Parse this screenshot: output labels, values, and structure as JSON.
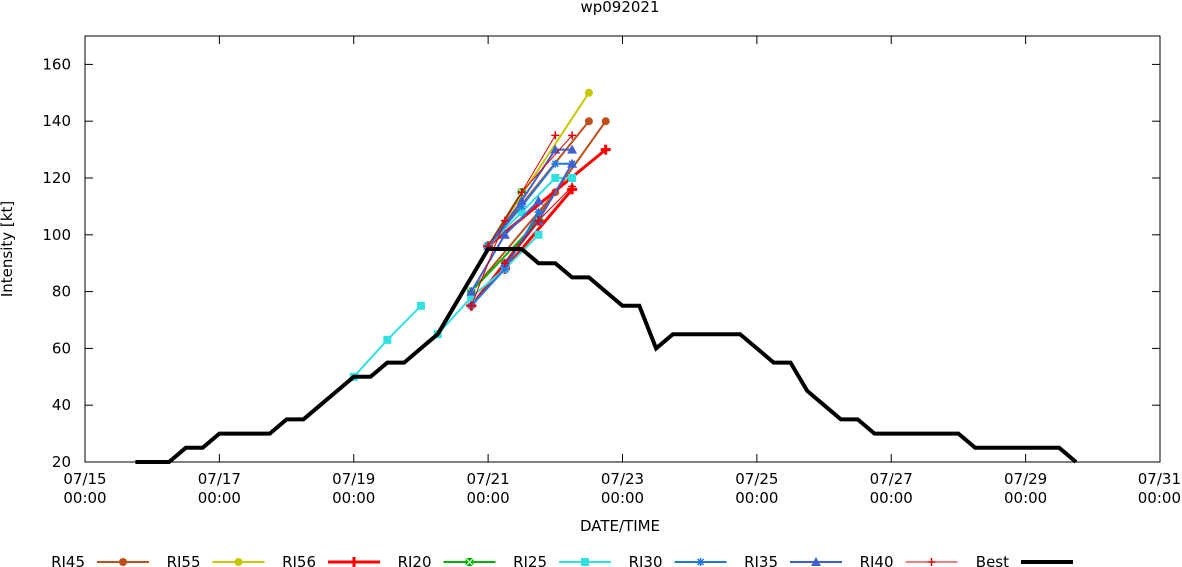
{
  "chart_data": {
    "type": "line",
    "title": "wp092021",
    "xlabel": "DATE/TIME",
    "ylabel": "Intensity [kt]",
    "x_unit": "days since 07/15 00:00",
    "xlim": [
      0,
      16
    ],
    "ylim": [
      20,
      170
    ],
    "grid": false,
    "legend_placement": "bottom",
    "y_ticks": [
      20,
      40,
      60,
      80,
      100,
      120,
      140,
      160
    ],
    "x_ticks": [
      {
        "x": 0,
        "date": "07/15",
        "time": "00:00"
      },
      {
        "x": 2,
        "date": "07/17",
        "time": "00:00"
      },
      {
        "x": 4,
        "date": "07/19",
        "time": "00:00"
      },
      {
        "x": 6,
        "date": "07/21",
        "time": "00:00"
      },
      {
        "x": 8,
        "date": "07/23",
        "time": "00:00"
      },
      {
        "x": 10,
        "date": "07/25",
        "time": "00:00"
      },
      {
        "x": 12,
        "date": "07/27",
        "time": "00:00"
      },
      {
        "x": 14,
        "date": "07/29",
        "time": "00:00"
      },
      {
        "x": 16,
        "date": "07/31",
        "time": "00:00"
      }
    ],
    "series": [
      {
        "name": "RI45",
        "color": "#c0501a",
        "marker": "circle",
        "width": 2,
        "lines": [
          [
            [
              6.0,
              96
            ],
            [
              7.5,
              140
            ]
          ],
          [
            [
              6.25,
              90
            ],
            [
              7.75,
              140
            ]
          ],
          [
            [
              5.75,
              80
            ],
            [
              7.0,
              115
            ]
          ]
        ]
      },
      {
        "name": "RI55",
        "color": "#c8c800",
        "marker": "circle",
        "width": 2,
        "lines": [
          [
            [
              6.0,
              96
            ],
            [
              7.5,
              150
            ]
          ]
        ]
      },
      {
        "name": "RI56",
        "color": "#ff0000",
        "marker": "plus-bold",
        "width": 3,
        "lines": [
          [
            [
              6.0,
              96
            ],
            [
              7.75,
              130
            ]
          ],
          [
            [
              5.75,
              75
            ],
            [
              6.75,
              105
            ]
          ],
          [
            [
              6.25,
              88
            ],
            [
              7.25,
              116
            ]
          ]
        ]
      },
      {
        "name": "RI20",
        "color": "#00b400",
        "marker": "square-x",
        "width": 2,
        "lines": [
          [
            [
              6.0,
              96
            ],
            [
              6.5,
              115
            ]
          ],
          [
            [
              5.75,
              80
            ],
            [
              6.75,
              105
            ]
          ]
        ]
      },
      {
        "name": "RI25",
        "color": "#33e0e0",
        "marker": "square",
        "width": 2,
        "lines": [
          [
            [
              4.0,
              50
            ],
            [
              4.5,
              63
            ],
            [
              5.0,
              75
            ]
          ],
          [
            [
              5.25,
              65
            ],
            [
              5.75,
              78
            ]
          ],
          [
            [
              5.75,
              78
            ],
            [
              6.25,
              88
            ],
            [
              6.75,
              100
            ]
          ],
          [
            [
              6.0,
              96
            ],
            [
              6.5,
              108
            ],
            [
              7.0,
              120
            ],
            [
              7.25,
              120
            ]
          ]
        ]
      },
      {
        "name": "RI30",
        "color": "#1e78e0",
        "marker": "asterisk",
        "width": 2,
        "lines": [
          [
            [
              5.75,
              75
            ],
            [
              6.25,
              88
            ],
            [
              6.75,
              108
            ]
          ],
          [
            [
              6.0,
              96
            ],
            [
              6.5,
              110
            ],
            [
              7.0,
              125
            ],
            [
              7.25,
              125
            ]
          ]
        ]
      },
      {
        "name": "RI35",
        "color": "#4060d0",
        "marker": "triangle",
        "width": 2,
        "lines": [
          [
            [
              5.75,
              80
            ],
            [
              6.25,
              100
            ],
            [
              6.75,
              112
            ]
          ],
          [
            [
              6.0,
              96
            ],
            [
              6.5,
              112
            ],
            [
              7.0,
              130
            ],
            [
              7.25,
              130
            ]
          ],
          [
            [
              6.25,
              90
            ],
            [
              6.75,
              105
            ],
            [
              7.25,
              125
            ]
          ]
        ]
      },
      {
        "name": "RI40",
        "color": "#e00000",
        "marker": "plus",
        "width": 1,
        "lines": [
          [
            [
              5.75,
              75
            ],
            [
              6.25,
              105
            ],
            [
              7.0,
              135
            ]
          ],
          [
            [
              6.0,
              96
            ],
            [
              6.5,
              115
            ],
            [
              7.25,
              135
            ]
          ],
          [
            [
              6.25,
              90
            ],
            [
              6.75,
              105
            ],
            [
              7.25,
              117
            ]
          ]
        ]
      },
      {
        "name": "Best",
        "color": "#000000",
        "marker": "none",
        "width": 4,
        "lines": [
          [
            [
              0.75,
              20
            ],
            [
              1.25,
              20
            ],
            [
              1.5,
              25
            ],
            [
              1.75,
              25
            ],
            [
              2.0,
              30
            ],
            [
              2.75,
              30
            ],
            [
              3.0,
              35
            ],
            [
              3.25,
              35
            ],
            [
              3.5,
              40
            ],
            [
              3.75,
              45
            ],
            [
              4.0,
              50
            ],
            [
              4.25,
              50
            ],
            [
              4.5,
              55
            ],
            [
              4.75,
              55
            ],
            [
              5.0,
              60
            ],
            [
              5.25,
              65
            ],
            [
              5.5,
              75
            ],
            [
              5.75,
              85
            ],
            [
              6.0,
              95
            ],
            [
              6.5,
              95
            ],
            [
              6.75,
              90
            ],
            [
              7.0,
              90
            ],
            [
              7.25,
              85
            ],
            [
              7.5,
              85
            ],
            [
              7.75,
              80
            ],
            [
              8.0,
              75
            ],
            [
              8.25,
              75
            ],
            [
              8.5,
              60
            ],
            [
              8.75,
              65
            ],
            [
              9.0,
              65
            ],
            [
              9.25,
              65
            ],
            [
              9.5,
              65
            ],
            [
              9.75,
              65
            ],
            [
              10.0,
              60
            ],
            [
              10.25,
              55
            ],
            [
              10.5,
              55
            ],
            [
              10.75,
              45
            ],
            [
              11.0,
              40
            ],
            [
              11.25,
              35
            ],
            [
              11.5,
              35
            ],
            [
              11.75,
              30
            ],
            [
              12.0,
              30
            ],
            [
              12.25,
              30
            ],
            [
              12.5,
              30
            ],
            [
              12.75,
              30
            ],
            [
              13.0,
              30
            ],
            [
              13.25,
              25
            ],
            [
              13.5,
              25
            ],
            [
              13.75,
              25
            ],
            [
              14.0,
              25
            ],
            [
              14.25,
              25
            ],
            [
              14.5,
              25
            ],
            [
              14.75,
              20
            ]
          ]
        ]
      }
    ]
  }
}
